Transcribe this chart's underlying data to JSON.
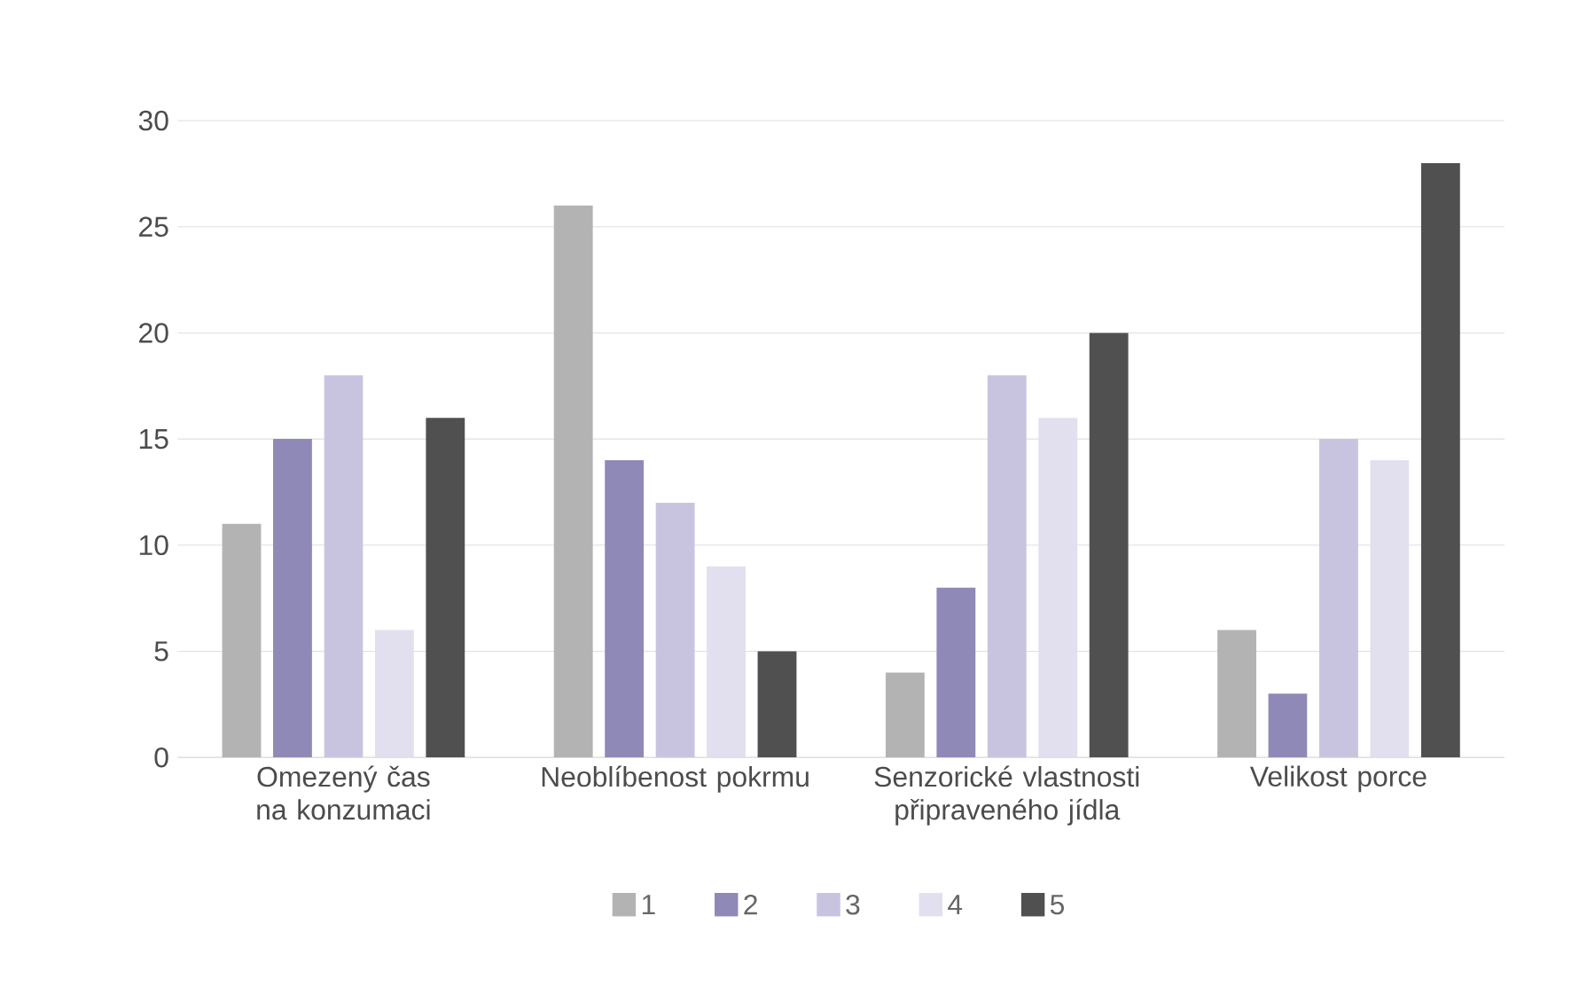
{
  "chart_data": {
    "type": "bar",
    "categories": [
      "Omezený čas na konzumaci",
      "Neoblíbenost pokrmu",
      "Senzorické vlastnosti připraveného jídla",
      "Velikost porce"
    ],
    "series": [
      {
        "name": "1",
        "color": "#b3b3b3",
        "values": [
          11,
          26,
          4,
          6
        ]
      },
      {
        "name": "2",
        "color": "#8f89b8",
        "values": [
          15,
          14,
          8,
          3
        ]
      },
      {
        "name": "3",
        "color": "#c8c4e0",
        "values": [
          18,
          12,
          18,
          15
        ]
      },
      {
        "name": "4",
        "color": "#e2e0ef",
        "values": [
          6,
          9,
          16,
          14
        ]
      },
      {
        "name": "5",
        "color": "#505050",
        "values": [
          16,
          5,
          20,
          28
        ]
      }
    ],
    "ylim": [
      0,
      30
    ],
    "yticks": [
      0,
      5,
      10,
      15,
      20,
      25,
      30
    ],
    "grid": "y",
    "legend": "bottom"
  }
}
